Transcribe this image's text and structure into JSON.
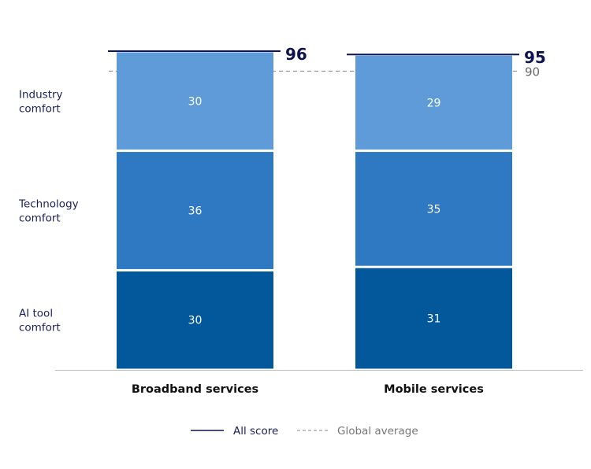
{
  "chart_data": {
    "type": "stacked-bar",
    "categories": [
      "Broadband services",
      "Mobile services"
    ],
    "series": [
      {
        "name": "AI tool comfort",
        "values": [
          30,
          31
        ],
        "color": "#03589b"
      },
      {
        "name": "Technology comfort",
        "values": [
          36,
          35
        ],
        "color": "#2f79c3"
      },
      {
        "name": "Industry comfort",
        "values": [
          30,
          29
        ],
        "color": "#5f9bd8"
      }
    ],
    "totals": {
      "name": "All score",
      "values": [
        96,
        95
      ],
      "color": "#0f1450"
    },
    "reference": {
      "name": "Global average",
      "value": 90,
      "color": "#888888"
    },
    "legend": {
      "placement": "bottom",
      "items": [
        "All score",
        "Global average"
      ]
    },
    "ylim": [
      0,
      96
    ],
    "grid": false
  }
}
